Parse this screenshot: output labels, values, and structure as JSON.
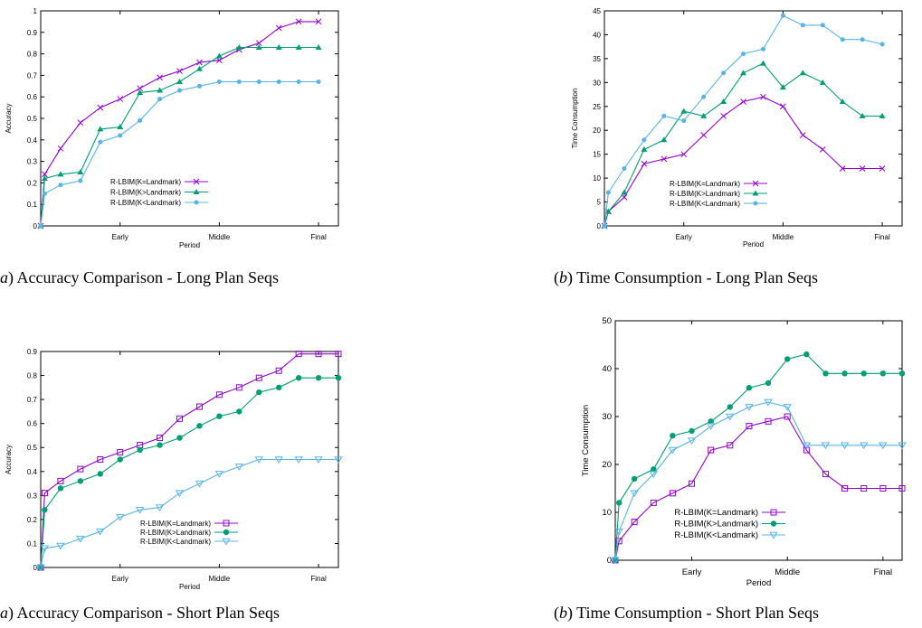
{
  "charts": [
    {
      "caption_label": "a",
      "caption_text": "Accuracy Comparison - Long Plan Seqs",
      "chart_data": {
        "type": "line",
        "title": "",
        "xlabel": "Period",
        "ylabel": "Accuracy",
        "xlim": [
          0,
          15
        ],
        "ylim": [
          0,
          1
        ],
        "yticks": [
          "0",
          "0.1",
          "0.2",
          "0.3",
          "0.4",
          "0.5",
          "0.6",
          "0.7",
          "0.8",
          "0.9",
          "1"
        ],
        "xticks": [
          {
            "x": 4,
            "label": "Early"
          },
          {
            "x": 9,
            "label": "Middle"
          },
          {
            "x": 14,
            "label": "Final"
          }
        ],
        "legend_position": "lower-center",
        "series": [
          {
            "name": "R-LBIM(K=Landmark)",
            "color": "#9400d3",
            "marker": "cross",
            "x": [
              0,
              0.2,
              1,
              2,
              3,
              4,
              5,
              6,
              7,
              8,
              9,
              10,
              11,
              12,
              13,
              14
            ],
            "y": [
              0,
              0.24,
              0.36,
              0.48,
              0.55,
              0.59,
              0.64,
              0.69,
              0.72,
              0.76,
              0.77,
              0.82,
              0.85,
              0.92,
              0.95,
              0.95
            ]
          },
          {
            "name": "R-LBIM(K>Landmark)",
            "color": "#009e73",
            "marker": "triangle",
            "x": [
              0,
              0.2,
              1,
              2,
              3,
              4,
              5,
              6,
              7,
              8,
              9,
              10,
              11,
              12,
              13,
              14
            ],
            "y": [
              0,
              0.22,
              0.24,
              0.25,
              0.45,
              0.46,
              0.62,
              0.63,
              0.67,
              0.73,
              0.79,
              0.83,
              0.83,
              0.83,
              0.83,
              0.83
            ]
          },
          {
            "name": "R-LBIM(K<Landmark)",
            "color": "#56b4e9",
            "marker": "circle",
            "x": [
              0,
              0.2,
              1,
              2,
              3,
              4,
              5,
              6,
              7,
              8,
              9,
              10,
              11,
              12,
              13,
              14
            ],
            "y": [
              0,
              0.15,
              0.19,
              0.21,
              0.39,
              0.42,
              0.49,
              0.59,
              0.63,
              0.65,
              0.67,
              0.67,
              0.67,
              0.67,
              0.67,
              0.67
            ]
          }
        ]
      }
    },
    {
      "caption_label": "b",
      "caption_text": "Time Consumption - Long Plan Seqs",
      "chart_data": {
        "type": "line",
        "title": "",
        "xlabel": "Period",
        "ylabel": "Time Consumption",
        "xlim": [
          0,
          15
        ],
        "ylim": [
          0,
          45
        ],
        "yticks": [
          "0",
          "5",
          "10",
          "15",
          "20",
          "25",
          "30",
          "35",
          "40",
          "45"
        ],
        "xticks": [
          {
            "x": 4,
            "label": "Early"
          },
          {
            "x": 9,
            "label": "Middle"
          },
          {
            "x": 14,
            "label": "Final"
          }
        ],
        "legend_position": "lower-left",
        "series": [
          {
            "name": "R-LBIM(K=Landmark)",
            "color": "#9400d3",
            "marker": "cross",
            "x": [
              0,
              0.2,
              1,
              2,
              3,
              4,
              5,
              6,
              7,
              8,
              9,
              10,
              11,
              12,
              13,
              14
            ],
            "y": [
              0,
              3,
              6,
              13,
              14,
              15,
              19,
              23,
              26,
              27,
              25,
              19,
              16,
              12,
              12,
              12
            ]
          },
          {
            "name": "R-LBIM(K>Landmark)",
            "color": "#009e73",
            "marker": "triangle",
            "x": [
              0,
              0.2,
              1,
              2,
              3,
              4,
              5,
              6,
              7,
              8,
              9,
              10,
              11,
              12,
              13,
              14
            ],
            "y": [
              0,
              3,
              7,
              16,
              18,
              24,
              23,
              26,
              32,
              34,
              29,
              32,
              30,
              26,
              23,
              23
            ]
          },
          {
            "name": "R-LBIM(K<Landmark)",
            "color": "#56b4e9",
            "marker": "circle",
            "x": [
              0,
              0.2,
              1,
              2,
              3,
              4,
              5,
              6,
              7,
              8,
              9,
              10,
              11,
              12,
              13,
              14
            ],
            "y": [
              0,
              7,
              12,
              18,
              23,
              22,
              27,
              32,
              36,
              37,
              44,
              42,
              42,
              39,
              39,
              38
            ]
          }
        ]
      }
    },
    {
      "caption_label": "a",
      "caption_text": "Accuracy Comparison - Short Plan Seqs",
      "chart_data": {
        "type": "line",
        "title": "",
        "xlabel": "Period",
        "ylabel": "Accuracy",
        "xlim": [
          0,
          15
        ],
        "ylim": [
          0,
          0.9
        ],
        "yticks": [
          "0",
          "0.1",
          "0.2",
          "0.3",
          "0.4",
          "0.5",
          "0.6",
          "0.7",
          "0.8",
          "0.9"
        ],
        "xticks": [
          {
            "x": 4,
            "label": "Early"
          },
          {
            "x": 9,
            "label": "Middle"
          },
          {
            "x": 14,
            "label": "Final"
          }
        ],
        "legend_position": "lower-center",
        "series": [
          {
            "name": "R-LBIM(K=Landmark)",
            "color": "#9400d3",
            "marker": "square",
            "x": [
              0,
              0.2,
              1,
              2,
              3,
              4,
              5,
              6,
              7,
              8,
              9,
              10,
              11,
              12,
              13,
              14,
              15
            ],
            "y": [
              0,
              0.31,
              0.36,
              0.41,
              0.45,
              0.48,
              0.51,
              0.54,
              0.62,
              0.67,
              0.72,
              0.75,
              0.79,
              0.82,
              0.89,
              0.89,
              0.89
            ]
          },
          {
            "name": "R-LBIM(K>Landmark)",
            "color": "#009e73",
            "marker": "filled-circle",
            "x": [
              0,
              0.2,
              1,
              2,
              3,
              4,
              5,
              6,
              7,
              8,
              9,
              10,
              11,
              12,
              13,
              14,
              15
            ],
            "y": [
              0,
              0.24,
              0.33,
              0.36,
              0.39,
              0.45,
              0.49,
              0.51,
              0.54,
              0.59,
              0.63,
              0.65,
              0.73,
              0.75,
              0.79,
              0.79,
              0.79
            ]
          },
          {
            "name": "R-LBIM(K<Landmark)",
            "color": "#56b4e9",
            "marker": "down-triangle",
            "x": [
              0,
              0.2,
              1,
              2,
              3,
              4,
              5,
              6,
              7,
              8,
              9,
              10,
              11,
              12,
              13,
              14,
              15
            ],
            "y": [
              0,
              0.08,
              0.09,
              0.12,
              0.15,
              0.21,
              0.24,
              0.25,
              0.31,
              0.35,
              0.39,
              0.42,
              0.45,
              0.45,
              0.45,
              0.45,
              0.45
            ]
          }
        ]
      }
    },
    {
      "caption_label": "b",
      "caption_text": "Time Consumption - Short Plan Seqs",
      "chart_data": {
        "type": "line",
        "title": "",
        "xlabel": "Period",
        "ylabel": "Time Consumption",
        "xlim": [
          0,
          15
        ],
        "ylim": [
          0,
          50
        ],
        "yticks": [
          "0",
          "10",
          "20",
          "30",
          "40",
          "50"
        ],
        "xticks": [
          {
            "x": 4,
            "label": "Early"
          },
          {
            "x": 9,
            "label": "Middle"
          },
          {
            "x": 14,
            "label": "Final"
          }
        ],
        "legend_position": "lower-left",
        "series": [
          {
            "name": "R-LBIM(K=Landmark)",
            "color": "#9400d3",
            "marker": "square",
            "x": [
              0,
              0.2,
              1,
              2,
              3,
              4,
              5,
              6,
              7,
              8,
              9,
              10,
              11,
              12,
              13,
              14,
              15
            ],
            "y": [
              0,
              4,
              8,
              12,
              14,
              16,
              23,
              24,
              28,
              29,
              30,
              23,
              18,
              15,
              15,
              15,
              15
            ]
          },
          {
            "name": "R-LBIM(K>Landmark)",
            "color": "#009e73",
            "marker": "filled-circle",
            "x": [
              0,
              0.2,
              1,
              2,
              3,
              4,
              5,
              6,
              7,
              8,
              9,
              10,
              11,
              12,
              13,
              14,
              15
            ],
            "y": [
              0,
              12,
              17,
              19,
              26,
              27,
              29,
              32,
              36,
              37,
              42,
              43,
              39,
              39,
              39,
              39,
              39
            ]
          },
          {
            "name": "R-LBIM(K<Landmark)",
            "color": "#56b4e9",
            "marker": "down-triangle",
            "x": [
              0,
              0.2,
              1,
              2,
              3,
              4,
              5,
              6,
              7,
              8,
              9,
              10,
              11,
              12,
              13,
              14,
              15
            ],
            "y": [
              0,
              6,
              14,
              18,
              23,
              25,
              28,
              30,
              32,
              33,
              32,
              24,
              24,
              24,
              24,
              24,
              24
            ]
          }
        ]
      }
    }
  ]
}
